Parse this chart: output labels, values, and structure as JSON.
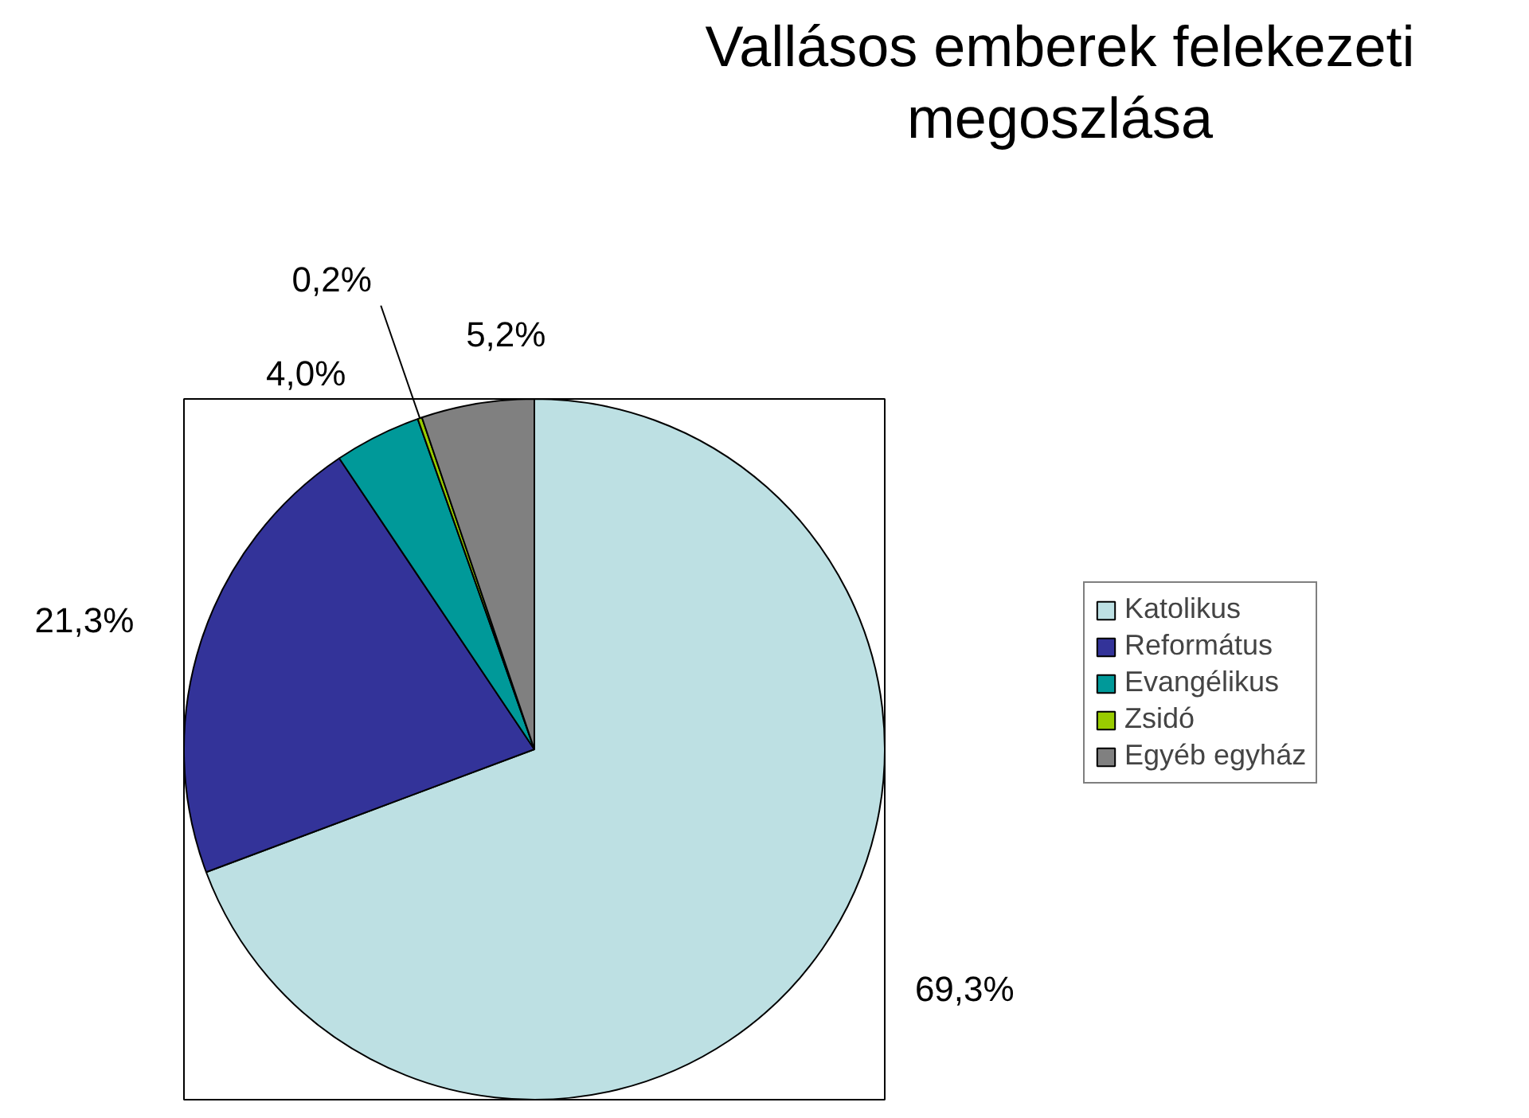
{
  "chart_data": {
    "type": "pie",
    "title": "Vallásos emberek felekezeti megoszlása",
    "categories": [
      "Katolikus",
      "Református",
      "Evangélikus",
      "Zsidó",
      "Egyéb egyház"
    ],
    "values": [
      69.3,
      21.3,
      4.0,
      0.2,
      5.2
    ],
    "colors": [
      "#bde0e3",
      "#333399",
      "#009999",
      "#99cc00",
      "#808080"
    ],
    "value_labels": [
      "69,3%",
      "21,3%",
      "4,0%",
      "0,2%",
      "5,2%"
    ],
    "legend": "right"
  }
}
